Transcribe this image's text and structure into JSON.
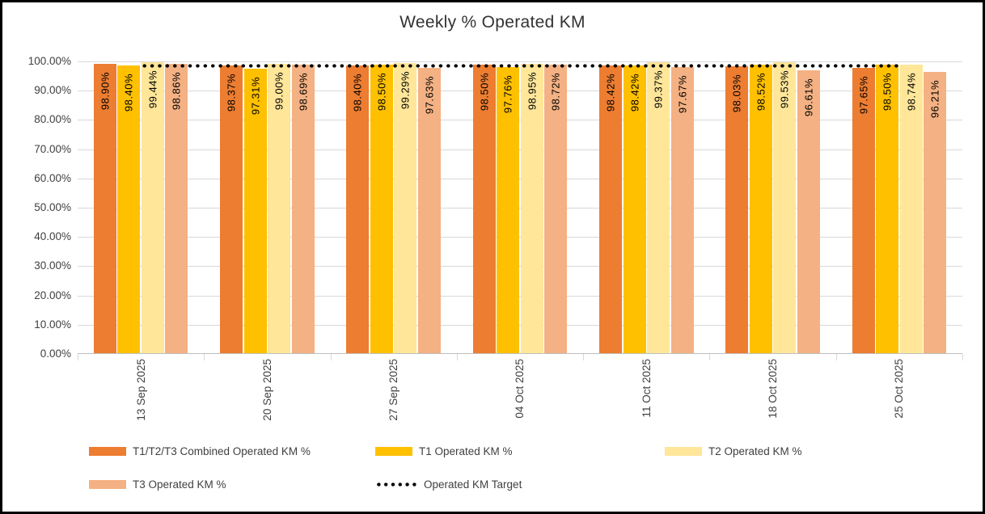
{
  "chart_data": {
    "type": "bar",
    "title": "Weekly % Operated KM",
    "categories": [
      "13 Sep 2025",
      "20 Sep 2025",
      "27 Sep 2025",
      "04 Oct 2025",
      "11 Oct 2025",
      "18 Oct 2025",
      "25 Oct 2025"
    ],
    "series": [
      {
        "name": "T1/T2/T3 Combined Operated KM %",
        "color": "#ED7D31",
        "values": [
          98.9,
          98.37,
          98.4,
          98.5,
          98.42,
          98.03,
          97.65
        ]
      },
      {
        "name": "T1 Operated KM %",
        "color": "#FFC000",
        "values": [
          98.4,
          97.31,
          98.5,
          97.76,
          98.42,
          98.52,
          98.5
        ]
      },
      {
        "name": "T2 Operated KM %",
        "color": "#FFE699",
        "values": [
          99.44,
          99.0,
          99.29,
          98.95,
          99.37,
          99.53,
          98.74
        ]
      },
      {
        "name": "T3 Operated KM %",
        "color": "#F4B183",
        "values": [
          98.86,
          98.69,
          97.63,
          98.72,
          97.67,
          96.61,
          96.21
        ]
      }
    ],
    "data_labels": [
      [
        "98.90%",
        "98.37%",
        "98.40%",
        "98.50%",
        "98.42%",
        "98.03%",
        "97.65%"
      ],
      [
        "98.40%",
        "97.31%",
        "98.50%",
        "97.76%",
        "98.42%",
        "98.52%",
        "98.50%"
      ],
      [
        "99.44%",
        "99.00%",
        "99.29%",
        "98.95%",
        "99.37%",
        "99.53%",
        "98.74%"
      ],
      [
        "98.86%",
        "98.69%",
        "97.63%",
        "98.72%",
        "97.67%",
        "96.61%",
        "96.21%"
      ]
    ],
    "target_line": {
      "name": "Operated KM Target",
      "value": 98.5,
      "color": "#000000",
      "style": "dotted"
    },
    "y_axis": {
      "min": 0,
      "max": 100,
      "step": 10,
      "tick_labels": [
        "0.00%",
        "10.00%",
        "20.00%",
        "30.00%",
        "40.00%",
        "50.00%",
        "60.00%",
        "70.00%",
        "80.00%",
        "90.00%",
        "100.00%"
      ]
    },
    "grid": true,
    "legend_position": "bottom"
  },
  "colors": {
    "gridline": "#D9D9D9",
    "axis": "#BFBFBF",
    "axis_text": "#404040",
    "data_label_text": "#000000",
    "background": "#FFFFFF",
    "border": "#000000"
  }
}
